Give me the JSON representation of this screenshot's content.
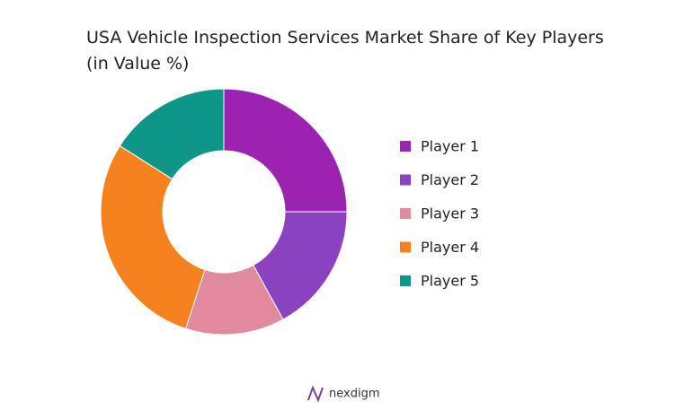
{
  "chart_data": {
    "type": "donut",
    "title": "USA Vehicle Inspection Services Market Share of Key Players (in Value %)",
    "categories": [
      "Player 1",
      "Player 2",
      "Player 3",
      "Player 4",
      "Player 5"
    ],
    "values": [
      25,
      17,
      13,
      29,
      16
    ],
    "colors": [
      "#9c22b1",
      "#8a42c0",
      "#e08a9c",
      "#f5821f",
      "#0e9688"
    ],
    "legend": "right"
  },
  "footer": {
    "brand": "nexdigm"
  }
}
